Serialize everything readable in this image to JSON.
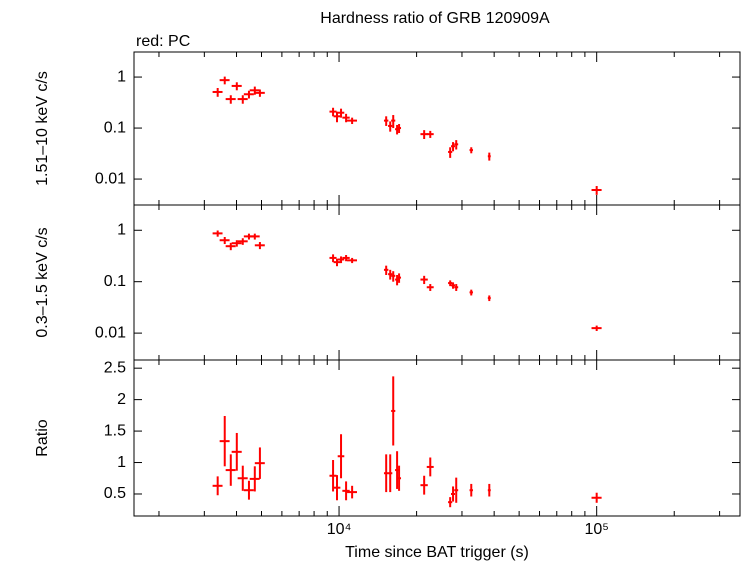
{
  "chart_data": [
    {
      "type": "errorbar",
      "title": "Hardness ratio of GRB 120909A",
      "annotation": "red: PC",
      "ylabel": "1.51–10 keV c/s",
      "xlog": true,
      "ylog": true,
      "xlim": [
        1600,
        360000
      ],
      "ylim": [
        0.0031,
        3.1
      ],
      "xticks": [
        {
          "value": 10000,
          "label": "10⁴"
        },
        {
          "value": 100000,
          "label": "10⁵"
        }
      ],
      "xminorticks": [
        2000,
        3000,
        4000,
        5000,
        6000,
        7000,
        8000,
        9000,
        20000,
        30000,
        40000,
        50000,
        60000,
        70000,
        80000,
        90000,
        200000,
        300000
      ],
      "yticks": [
        0.01,
        0.1,
        1
      ],
      "series": [
        {
          "color": "#ff0000",
          "x": [
            3380,
            3600,
            3800,
            4010,
            4230,
            4470,
            4710,
            4930,
            9480,
            9820,
            10180,
            10650,
            11240,
            15240,
            15800,
            16230,
            16800,
            17100,
            21400,
            22600,
            27000,
            27700,
            28500,
            32600,
            38300,
            100000
          ],
          "x_err": [
            150,
            160,
            170,
            180,
            190,
            200,
            210,
            220,
            300,
            300,
            300,
            350,
            500,
            300,
            300,
            300,
            300,
            300,
            700,
            700,
            500,
            500,
            500,
            500,
            500,
            4500
          ],
          "values": [
            0.51,
            0.87,
            0.37,
            0.67,
            0.37,
            0.46,
            0.55,
            0.49,
            0.21,
            0.17,
            0.2,
            0.16,
            0.14,
            0.14,
            0.11,
            0.14,
            0.095,
            0.1,
            0.076,
            0.076,
            0.034,
            0.044,
            0.048,
            0.037,
            0.028,
            0.0061
          ],
          "y_err": [
            0.1,
            0.15,
            0.07,
            0.12,
            0.07,
            0.08,
            0.1,
            0.08,
            0.04,
            0.04,
            0.04,
            0.03,
            0.02,
            0.03,
            0.025,
            0.04,
            0.02,
            0.02,
            0.015,
            0.012,
            0.008,
            0.009,
            0.01,
            0.005,
            0.005,
            0.0012
          ]
        }
      ]
    },
    {
      "type": "errorbar",
      "ylabel": "0.3–1.5 keV c/s",
      "xlog": true,
      "ylog": true,
      "xlim": [
        1600,
        360000
      ],
      "ylim": [
        0.003,
        3.1
      ],
      "xticks": [
        {
          "value": 10000,
          "label": "10⁴"
        },
        {
          "value": 100000,
          "label": "10⁵"
        }
      ],
      "xminorticks": [
        2000,
        3000,
        4000,
        5000,
        6000,
        7000,
        8000,
        9000,
        20000,
        30000,
        40000,
        50000,
        60000,
        70000,
        80000,
        90000,
        200000,
        300000
      ],
      "yticks": [
        0.01,
        0.1,
        1
      ],
      "series": [
        {
          "color": "#ff0000",
          "x": [
            3380,
            3600,
            3800,
            4010,
            4230,
            4470,
            4710,
            4930,
            9480,
            9820,
            10180,
            10650,
            11240,
            15240,
            15800,
            16230,
            16800,
            17100,
            21400,
            22600,
            27000,
            27700,
            28500,
            32600,
            38300,
            100000
          ],
          "x_err": [
            150,
            160,
            170,
            180,
            190,
            200,
            210,
            220,
            300,
            300,
            300,
            350,
            500,
            300,
            300,
            300,
            300,
            300,
            700,
            700,
            500,
            500,
            500,
            500,
            500,
            4500
          ],
          "values": [
            0.87,
            0.64,
            0.49,
            0.56,
            0.61,
            0.76,
            0.76,
            0.51,
            0.29,
            0.24,
            0.27,
            0.29,
            0.26,
            0.17,
            0.14,
            0.13,
            0.11,
            0.12,
            0.11,
            0.078,
            0.094,
            0.085,
            0.078,
            0.062,
            0.048,
            0.0125
          ],
          "y_err": [
            0.12,
            0.1,
            0.08,
            0.08,
            0.09,
            0.1,
            0.1,
            0.08,
            0.05,
            0.04,
            0.04,
            0.04,
            0.03,
            0.035,
            0.03,
            0.03,
            0.025,
            0.025,
            0.02,
            0.012,
            0.012,
            0.012,
            0.012,
            0.008,
            0.006,
            0.0015
          ]
        }
      ]
    },
    {
      "type": "errorbar",
      "ylabel": "Ratio",
      "xlabel": "Time since BAT trigger (s)",
      "xlog": true,
      "ylog": false,
      "xlim": [
        1600,
        360000
      ],
      "ylim": [
        0.15,
        2.63
      ],
      "xticks": [
        {
          "value": 10000,
          "label": "10⁴"
        },
        {
          "value": 100000,
          "label": "10⁵"
        }
      ],
      "xminorticks": [
        2000,
        3000,
        4000,
        5000,
        6000,
        7000,
        8000,
        9000,
        20000,
        30000,
        40000,
        50000,
        60000,
        70000,
        80000,
        90000,
        200000,
        300000
      ],
      "yticks": [
        0.5,
        1,
        1.5,
        2,
        2.5
      ],
      "series": [
        {
          "color": "#ff0000",
          "x": [
            3380,
            3600,
            3800,
            4010,
            4230,
            4470,
            4710,
            4930,
            9480,
            9820,
            10180,
            10650,
            11240,
            15240,
            15800,
            16230,
            16800,
            17100,
            21400,
            22600,
            27000,
            27700,
            28500,
            32600,
            38300,
            100000
          ],
          "x_err": [
            150,
            160,
            170,
            180,
            190,
            200,
            210,
            220,
            300,
            300,
            300,
            350,
            500,
            300,
            300,
            300,
            300,
            300,
            700,
            700,
            500,
            500,
            500,
            500,
            500,
            4500
          ],
          "values": [
            0.63,
            1.34,
            0.88,
            1.17,
            0.75,
            0.56,
            0.74,
            0.99,
            0.79,
            0.6,
            1.1,
            0.55,
            0.53,
            0.83,
            0.83,
            1.82,
            0.88,
            0.75,
            0.64,
            0.93,
            0.37,
            0.5,
            0.56,
            0.56,
            0.56,
            0.44
          ],
          "y_err": [
            0.15,
            0.4,
            0.25,
            0.3,
            0.2,
            0.15,
            0.2,
            0.25,
            0.25,
            0.2,
            0.35,
            0.15,
            0.1,
            0.3,
            0.3,
            0.55,
            0.3,
            0.2,
            0.15,
            0.15,
            0.08,
            0.12,
            0.2,
            0.1,
            0.1,
            0.08
          ]
        }
      ]
    }
  ]
}
